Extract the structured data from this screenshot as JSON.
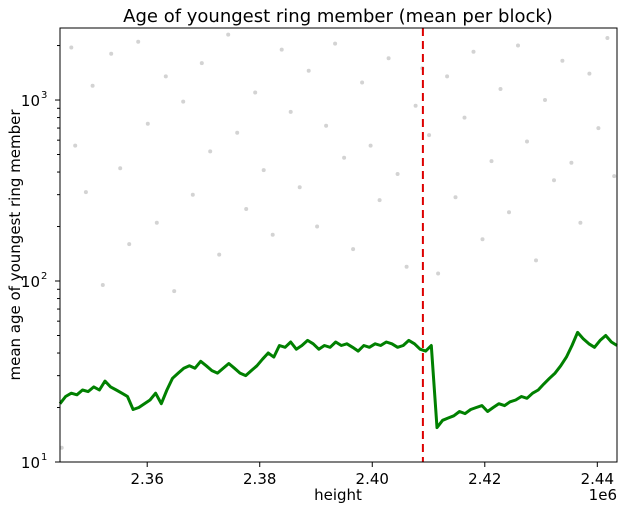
{
  "chart_data": {
    "type": "scatter",
    "title": "Age of youngest ring member (mean per block)",
    "xlabel": "height",
    "ylabel": "mean age of youngest ring member",
    "x_offset_label": "1e6",
    "yscale": "log",
    "xlim": [
      2.3445,
      2.4435
    ],
    "ylim": [
      10,
      2500
    ],
    "x_ticks": [
      2.36,
      2.38,
      2.4,
      2.42,
      2.44
    ],
    "x_tick_labels": [
      "2.36",
      "2.38",
      "2.40",
      "2.42",
      "2.44"
    ],
    "y_ticks": [
      10,
      100,
      1000
    ],
    "y_tick_labels": [
      "10",
      "10",
      "10"
    ],
    "y_tick_exponents": [
      "1",
      "2",
      "3"
    ],
    "grid": false,
    "vline": {
      "x": 2.409,
      "color": "#dd0000",
      "style": "dashed"
    },
    "series": [
      {
        "kind": "scatter",
        "color": "#d3d3d3",
        "points": [
          [
            2.3448,
            12
          ],
          [
            2.3465,
            1950
          ],
          [
            2.3472,
            560
          ],
          [
            2.3491,
            310
          ],
          [
            2.3503,
            1200
          ],
          [
            2.3521,
            95
          ],
          [
            2.3536,
            1800
          ],
          [
            2.3552,
            420
          ],
          [
            2.3568,
            160
          ],
          [
            2.3584,
            2100
          ],
          [
            2.3601,
            740
          ],
          [
            2.3617,
            210
          ],
          [
            2.3633,
            1350
          ],
          [
            2.3648,
            88
          ],
          [
            2.3664,
            980
          ],
          [
            2.3681,
            300
          ],
          [
            2.3697,
            1600
          ],
          [
            2.3712,
            520
          ],
          [
            2.3728,
            140
          ],
          [
            2.3744,
            2300
          ],
          [
            2.376,
            660
          ],
          [
            2.3776,
            250
          ],
          [
            2.3792,
            1100
          ],
          [
            2.3807,
            410
          ],
          [
            2.3823,
            180
          ],
          [
            2.3839,
            1900
          ],
          [
            2.3855,
            860
          ],
          [
            2.3871,
            330
          ],
          [
            2.3887,
            1450
          ],
          [
            2.3902,
            200
          ],
          [
            2.3918,
            720
          ],
          [
            2.3934,
            2050
          ],
          [
            2.395,
            480
          ],
          [
            2.3966,
            150
          ],
          [
            2.3982,
            1250
          ],
          [
            2.3997,
            560
          ],
          [
            2.4013,
            280
          ],
          [
            2.4029,
            1700
          ],
          [
            2.4045,
            390
          ],
          [
            2.4061,
            120
          ],
          [
            2.4077,
            930
          ],
          [
            2.4089,
            1500
          ],
          [
            2.4101,
            640
          ],
          [
            2.4117,
            110
          ],
          [
            2.4133,
            1350
          ],
          [
            2.4148,
            290
          ],
          [
            2.4164,
            800
          ],
          [
            2.418,
            1850
          ],
          [
            2.4196,
            170
          ],
          [
            2.4212,
            460
          ],
          [
            2.4228,
            1150
          ],
          [
            2.4243,
            240
          ],
          [
            2.4259,
            2000
          ],
          [
            2.4275,
            590
          ],
          [
            2.4291,
            130
          ],
          [
            2.4307,
            1000
          ],
          [
            2.4323,
            360
          ],
          [
            2.4338,
            1650
          ],
          [
            2.4354,
            450
          ],
          [
            2.437,
            210
          ],
          [
            2.4386,
            1400
          ],
          [
            2.4402,
            700
          ],
          [
            2.4418,
            2200
          ],
          [
            2.443,
            380
          ]
        ]
      },
      {
        "kind": "line",
        "color": "#008000",
        "points": [
          [
            2.3445,
            21
          ],
          [
            2.3455,
            23
          ],
          [
            2.3465,
            24
          ],
          [
            2.3475,
            23.5
          ],
          [
            2.3485,
            25
          ],
          [
            2.3495,
            24.5
          ],
          [
            2.3505,
            26
          ],
          [
            2.3515,
            25
          ],
          [
            2.3525,
            28
          ],
          [
            2.3535,
            26
          ],
          [
            2.3545,
            25
          ],
          [
            2.3555,
            24
          ],
          [
            2.3565,
            23
          ],
          [
            2.3575,
            19.5
          ],
          [
            2.3585,
            20
          ],
          [
            2.3595,
            21
          ],
          [
            2.3605,
            22
          ],
          [
            2.3615,
            24
          ],
          [
            2.3625,
            21
          ],
          [
            2.3635,
            25
          ],
          [
            2.3645,
            29
          ],
          [
            2.3655,
            31
          ],
          [
            2.3665,
            33
          ],
          [
            2.3675,
            34
          ],
          [
            2.3685,
            33
          ],
          [
            2.3695,
            36
          ],
          [
            2.3705,
            34
          ],
          [
            2.3715,
            32
          ],
          [
            2.3725,
            31
          ],
          [
            2.3735,
            33
          ],
          [
            2.3745,
            35
          ],
          [
            2.3755,
            33
          ],
          [
            2.3765,
            31
          ],
          [
            2.3775,
            30
          ],
          [
            2.3785,
            32
          ],
          [
            2.3795,
            34
          ],
          [
            2.3805,
            37
          ],
          [
            2.3815,
            40
          ],
          [
            2.3825,
            38
          ],
          [
            2.3835,
            44
          ],
          [
            2.3845,
            43
          ],
          [
            2.3855,
            46
          ],
          [
            2.3865,
            42
          ],
          [
            2.3875,
            44
          ],
          [
            2.3885,
            47
          ],
          [
            2.3895,
            45
          ],
          [
            2.3905,
            42
          ],
          [
            2.3915,
            44
          ],
          [
            2.3925,
            43
          ],
          [
            2.3935,
            46
          ],
          [
            2.3945,
            44
          ],
          [
            2.3955,
            45
          ],
          [
            2.3965,
            43
          ],
          [
            2.3975,
            41
          ],
          [
            2.3985,
            44
          ],
          [
            2.3995,
            43
          ],
          [
            2.4005,
            45
          ],
          [
            2.4015,
            44
          ],
          [
            2.4025,
            46
          ],
          [
            2.4035,
            45
          ],
          [
            2.4045,
            43
          ],
          [
            2.4055,
            44
          ],
          [
            2.4065,
            47
          ],
          [
            2.4075,
            45
          ],
          [
            2.4085,
            42
          ],
          [
            2.4095,
            41
          ],
          [
            2.4105,
            44
          ],
          [
            2.4115,
            15.5
          ],
          [
            2.4125,
            17
          ],
          [
            2.4135,
            17.5
          ],
          [
            2.4145,
            18
          ],
          [
            2.4155,
            19
          ],
          [
            2.4165,
            18.5
          ],
          [
            2.4175,
            19.5
          ],
          [
            2.4185,
            20
          ],
          [
            2.4195,
            20.5
          ],
          [
            2.4205,
            19
          ],
          [
            2.4215,
            20
          ],
          [
            2.4225,
            21
          ],
          [
            2.4235,
            20.5
          ],
          [
            2.4245,
            21.5
          ],
          [
            2.4255,
            22
          ],
          [
            2.4265,
            23
          ],
          [
            2.4275,
            22.5
          ],
          [
            2.4285,
            24
          ],
          [
            2.4295,
            25
          ],
          [
            2.4305,
            27
          ],
          [
            2.4315,
            29
          ],
          [
            2.4325,
            31
          ],
          [
            2.4335,
            34
          ],
          [
            2.4345,
            38
          ],
          [
            2.4355,
            44
          ],
          [
            2.4365,
            52
          ],
          [
            2.4375,
            48
          ],
          [
            2.4385,
            45
          ],
          [
            2.4395,
            43
          ],
          [
            2.4405,
            47
          ],
          [
            2.4415,
            50
          ],
          [
            2.4425,
            46
          ],
          [
            2.4435,
            44
          ]
        ]
      }
    ]
  }
}
